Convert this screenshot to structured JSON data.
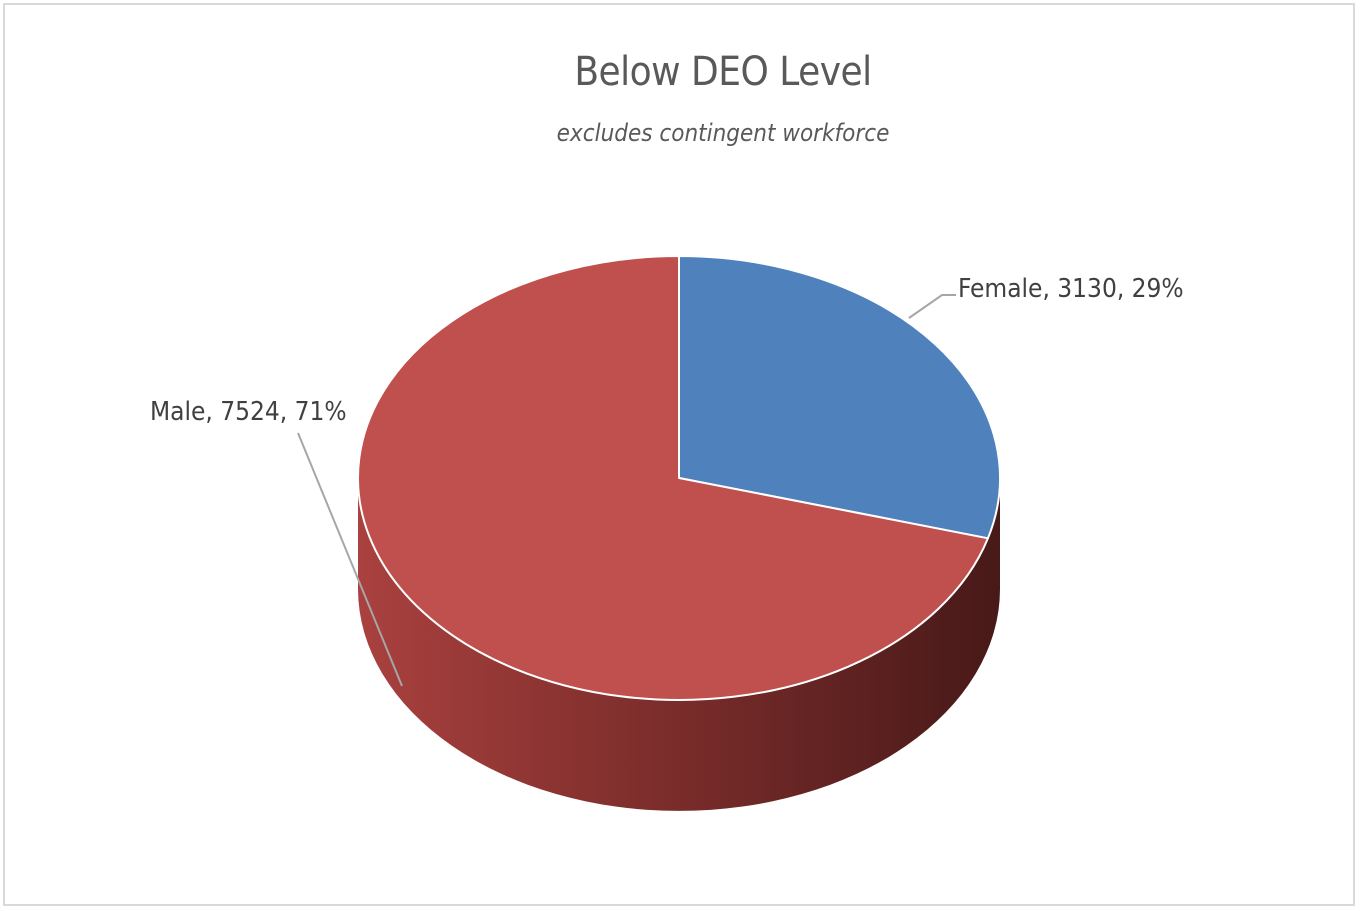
{
  "chart_data": {
    "type": "pie",
    "title": "Below DEO Level",
    "subtitle": "excludes contingent workforce",
    "slices": [
      {
        "name": "Female",
        "value": 3130,
        "percent": 29,
        "color": "#4f81bd",
        "label": "Female, 3130, 29%"
      },
      {
        "name": "Male",
        "value": 7524,
        "percent": 71,
        "color": "#c0504d",
        "label": "Male, 7524, 71%"
      }
    ],
    "three_d": true,
    "legend": "none"
  }
}
